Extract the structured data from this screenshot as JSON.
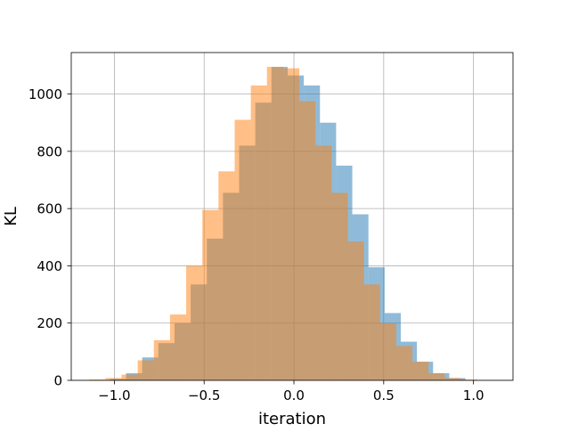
{
  "chart_data": {
    "type": "bar",
    "subtype": "overlapping-histogram",
    "title": "",
    "xlabel": "iteration",
    "ylabel": "KL",
    "xlim": [
      -1.24,
      1.22
    ],
    "ylim": [
      0,
      1145
    ],
    "grid": true,
    "legend": "none",
    "xticks": [
      {
        "value": -1.0,
        "label": "−1.0"
      },
      {
        "value": -0.5,
        "label": "−0.5"
      },
      {
        "value": 0.0,
        "label": "0.0"
      },
      {
        "value": 0.5,
        "label": "0.5"
      },
      {
        "value": 1.0,
        "label": "1.0"
      }
    ],
    "yticks": [
      {
        "value": 0,
        "label": "0"
      },
      {
        "value": 200,
        "label": "200"
      },
      {
        "value": 400,
        "label": "400"
      },
      {
        "value": 600,
        "label": "600"
      },
      {
        "value": 800,
        "label": "800"
      },
      {
        "value": 1000,
        "label": "1000"
      }
    ],
    "series": [
      {
        "color": "#1f77b4",
        "opacity": 0.5,
        "bin_start": -1.025,
        "bin_width": 0.09,
        "values": [
          5,
          25,
          80,
          130,
          200,
          335,
          495,
          655,
          820,
          970,
          1095,
          1065,
          1030,
          900,
          750,
          580,
          395,
          235,
          135,
          65,
          25,
          8
        ]
      },
      {
        "color": "#ff7f0e",
        "opacity": 0.5,
        "bin_start": -1.14,
        "bin_width": 0.09,
        "values": [
          3,
          8,
          20,
          70,
          140,
          230,
          400,
          595,
          730,
          910,
          1030,
          1095,
          1090,
          975,
          820,
          655,
          485,
          335,
          200,
          120,
          65,
          25,
          8,
          3
        ]
      }
    ]
  }
}
